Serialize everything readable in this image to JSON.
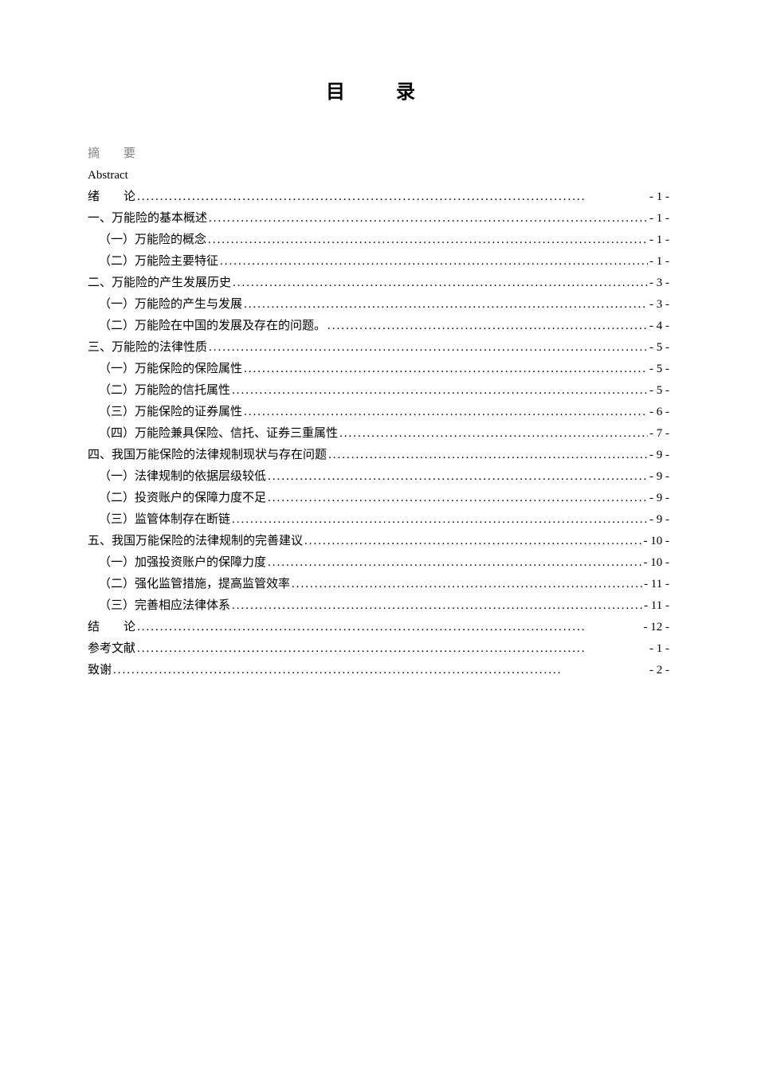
{
  "page": {
    "title": "目　录",
    "entries": [
      {
        "label": "摘　　要",
        "page": "",
        "indent": 0,
        "gray": true,
        "noDots": true
      },
      {
        "label": "Abstract",
        "page": "",
        "indent": 0,
        "gray": false,
        "noDots": true
      },
      {
        "label": "绪　　论",
        "page": "- 1 -",
        "indent": 0,
        "gray": false,
        "noDots": false
      },
      {
        "label": "一、万能险的基本概述",
        "page": "- 1 -",
        "indent": 0,
        "gray": false,
        "noDots": false
      },
      {
        "label": "（一）万能险的概念",
        "page": "- 1 -",
        "indent": 1,
        "gray": false,
        "noDots": false
      },
      {
        "label": "（二）万能险主要特征",
        "page": "- 1 -",
        "indent": 1,
        "gray": false,
        "noDots": false
      },
      {
        "label": "二、万能险的产生发展历史",
        "page": "- 3 -",
        "indent": 0,
        "gray": false,
        "noDots": false
      },
      {
        "label": "（一）万能险的产生与发展",
        "page": "- 3 -",
        "indent": 1,
        "gray": false,
        "noDots": false
      },
      {
        "label": "（二）万能险在中国的发展及存在的问题。",
        "page": "- 4 -",
        "indent": 1,
        "gray": false,
        "noDots": false
      },
      {
        "label": "三、万能险的法律性质",
        "page": "- 5 -",
        "indent": 0,
        "gray": false,
        "noDots": false
      },
      {
        "label": "（一）万能保险的保险属性",
        "page": "- 5 -",
        "indent": 1,
        "gray": false,
        "noDots": false
      },
      {
        "label": "（二）万能险的信托属性",
        "page": "- 5 -",
        "indent": 1,
        "gray": false,
        "noDots": false
      },
      {
        "label": "（三）万能保险的证券属性",
        "page": "- 6 -",
        "indent": 1,
        "gray": false,
        "noDots": false
      },
      {
        "label": "（四）万能险兼具保险、信托、证券三重属性",
        "page": "- 7 -",
        "indent": 1,
        "gray": false,
        "noDots": false
      },
      {
        "label": "四、我国万能保险的法律规制现状与存在问题",
        "page": "- 9 -",
        "indent": 0,
        "gray": false,
        "noDots": false
      },
      {
        "label": "（一）法律规制的依据层级较低",
        "page": "- 9 -",
        "indent": 1,
        "gray": false,
        "noDots": false
      },
      {
        "label": "（二）投资账户的保障力度不足",
        "page": "- 9 -",
        "indent": 1,
        "gray": false,
        "noDots": false
      },
      {
        "label": "（三）监管体制存在断链",
        "page": "- 9 -",
        "indent": 1,
        "gray": false,
        "noDots": false
      },
      {
        "label": "五、我国万能保险的法律规制的完善建议",
        "page": "- 10 -",
        "indent": 0,
        "gray": false,
        "noDots": false
      },
      {
        "label": "（一）加强投资账户的保障力度",
        "page": "- 10 -",
        "indent": 1,
        "gray": false,
        "noDots": false
      },
      {
        "label": "（二）强化监管措施，提高监管效率",
        "page": "- 11 -",
        "indent": 1,
        "gray": false,
        "noDots": false
      },
      {
        "label": "（三）完善相应法律体系",
        "page": "- 11 -",
        "indent": 1,
        "gray": false,
        "noDots": false
      },
      {
        "label": "结　　论",
        "page": "- 12 -",
        "indent": 0,
        "gray": false,
        "noDots": false
      },
      {
        "label": "参考文献",
        "page": "- 1 -",
        "indent": 0,
        "gray": false,
        "noDots": false
      },
      {
        "label": "致谢",
        "page": "- 2 -",
        "indent": 0,
        "gray": false,
        "noDots": false
      }
    ],
    "dots": ".................................................................................................."
  },
  "colors": {
    "text": "#000000",
    "gray": "#808080",
    "background": "#ffffff"
  },
  "typography": {
    "title_fontsize": 24,
    "body_fontsize": 15,
    "line_height": 1.8,
    "font_family": "SimSun"
  }
}
